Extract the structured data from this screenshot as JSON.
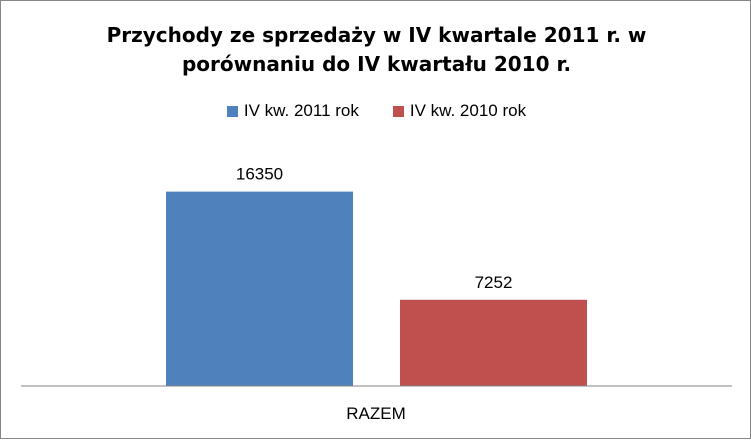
{
  "chart_data": {
    "type": "bar",
    "title_lines": [
      "Przychody ze sprzedaży w IV kwartale 2011 r. w",
      "porównaniu  do IV kwartału 2010 r."
    ],
    "categories": [
      "RAZEM"
    ],
    "series": [
      {
        "name": "IV kw. 2011 rok",
        "values": [
          16350
        ],
        "color": "#4F81BD"
      },
      {
        "name": "IV kw. 2010 rok",
        "values": [
          7252
        ],
        "color": "#C0504D"
      }
    ],
    "data_labels": [
      "16350",
      "7252"
    ],
    "ylim": [
      0,
      18000
    ],
    "grid": false,
    "legend_position": "top"
  }
}
